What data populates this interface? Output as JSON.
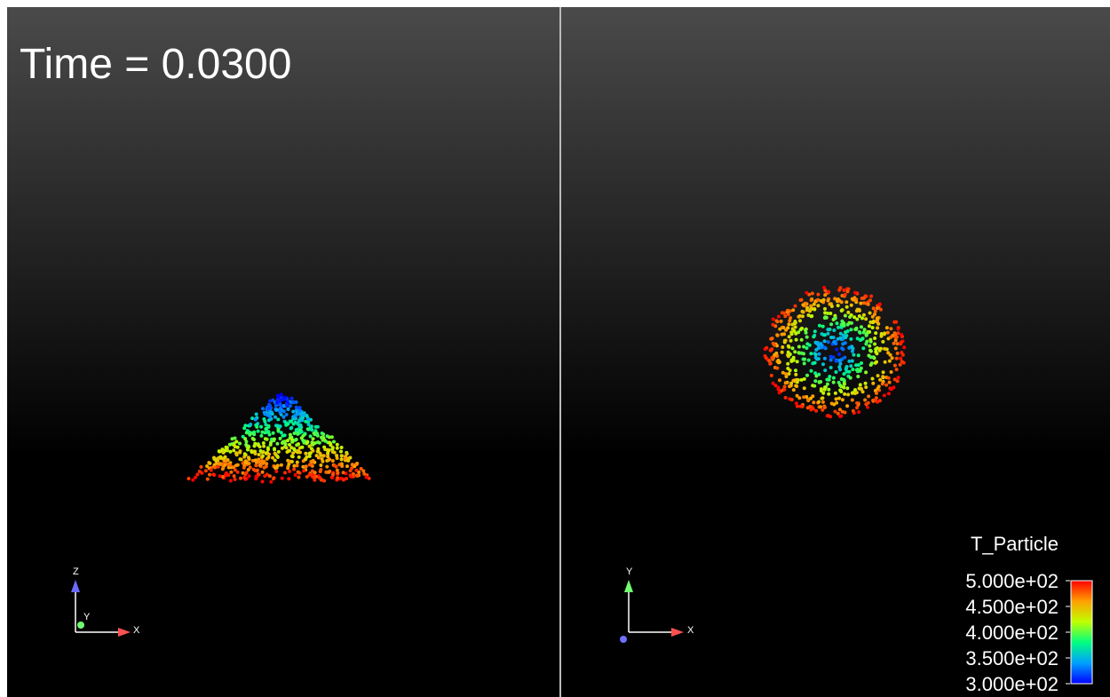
{
  "time_label": "Time = 0.0300",
  "left_view": {
    "axes": {
      "vertical": "Z",
      "depth": "Y",
      "horizontal": "X"
    }
  },
  "right_view": {
    "axes": {
      "vertical": "Y",
      "horizontal": "X"
    },
    "color_legend": {
      "title": "T_Particle",
      "lim": [
        300,
        500
      ],
      "colormap": [
        "#0000ff",
        "#00a0ff",
        "#00ff80",
        "#c0ff00",
        "#ffa000",
        "#ff0000"
      ],
      "ticks": [
        {
          "value": 500,
          "label": "5.000e+02"
        },
        {
          "value": 450,
          "label": "4.500e+02"
        },
        {
          "value": 400,
          "label": "4.000e+02"
        },
        {
          "value": 350,
          "label": "3.500e+02"
        },
        {
          "value": 300,
          "label": "3.000e+02"
        }
      ]
    }
  }
}
